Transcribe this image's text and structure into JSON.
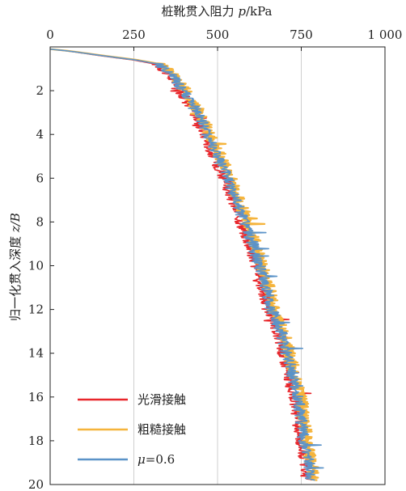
{
  "chart_data": {
    "type": "line",
    "xlabel_text": "桩靴贯入阻力 ",
    "xlabel_var": "p",
    "xlabel_unit": "/kPa",
    "ylabel_text": "归一化贯入深度 ",
    "ylabel_var": "z/B",
    "xlim": [
      0,
      1000
    ],
    "ylim": [
      0,
      20
    ],
    "x_axis_position": "top",
    "y_inverted": true,
    "grid": "vertical",
    "x_ticks": [
      0,
      250,
      500,
      750,
      1000
    ],
    "x_tick_labels": [
      "0",
      "250",
      "500",
      "750",
      "1 000"
    ],
    "y_ticks": [
      2,
      4,
      6,
      8,
      10,
      12,
      14,
      16,
      18,
      20
    ],
    "y_tick_labels": [
      "2",
      "4",
      "6",
      "8",
      "10",
      "12",
      "14",
      "16",
      "18",
      "20"
    ],
    "legend_position": "bottom-left",
    "legend": [
      {
        "label": "光滑接触",
        "color": "#e8262b"
      },
      {
        "label": "粗糙接触",
        "color": "#f5b43c"
      },
      {
        "label_prefix": "μ",
        "label_suffix": "=0.6",
        "color": "#5b93c8"
      }
    ],
    "series": [
      {
        "name": "光滑接触",
        "color": "#e8262b",
        "x": [
          0,
          60,
          150,
          250,
          320,
          350,
          380,
          410,
          440,
          460,
          490,
          520,
          545,
          570,
          595,
          615,
          635,
          650,
          665,
          680,
          695,
          705,
          712,
          720,
          730,
          740,
          748,
          755,
          762,
          768
        ],
        "y": [
          0.1,
          0.2,
          0.4,
          0.6,
          0.8,
          1.2,
          1.8,
          2.5,
          3.2,
          4.0,
          5.0,
          6.0,
          7.0,
          8.0,
          9.0,
          10.0,
          11.0,
          12.0,
          12.5,
          13.0,
          14.0,
          14.5,
          15.0,
          15.5,
          16.0,
          17.0,
          18.0,
          18.5,
          19.0,
          19.8
        ]
      },
      {
        "name": "粗糙接触",
        "color": "#f5b43c",
        "x": [
          0,
          65,
          160,
          262,
          335,
          365,
          395,
          425,
          455,
          478,
          508,
          538,
          563,
          588,
          613,
          633,
          653,
          668,
          683,
          698,
          713,
          723,
          730,
          738,
          748,
          758,
          766,
          773,
          780,
          786
        ],
        "y": [
          0.1,
          0.2,
          0.4,
          0.6,
          0.8,
          1.2,
          1.8,
          2.5,
          3.2,
          4.0,
          5.0,
          6.0,
          7.0,
          8.0,
          9.0,
          10.0,
          11.0,
          12.0,
          12.5,
          13.0,
          14.0,
          14.5,
          15.0,
          15.5,
          16.0,
          17.0,
          18.0,
          18.5,
          19.0,
          19.8
        ]
      },
      {
        "label_prefix": "μ",
        "label_suffix": "=0.6",
        "color": "#5b93c8",
        "x": [
          0,
          62,
          155,
          256,
          328,
          358,
          388,
          418,
          448,
          470,
          500,
          530,
          555,
          580,
          605,
          625,
          645,
          660,
          675,
          690,
          705,
          715,
          722,
          730,
          740,
          750,
          758,
          765,
          772,
          778
        ],
        "y": [
          0.1,
          0.2,
          0.4,
          0.6,
          0.8,
          1.2,
          1.8,
          2.5,
          3.2,
          4.0,
          5.0,
          6.0,
          7.0,
          8.0,
          9.0,
          10.0,
          11.0,
          12.0,
          12.5,
          13.0,
          14.0,
          14.5,
          15.0,
          15.5,
          16.0,
          17.0,
          18.0,
          18.5,
          19.0,
          19.8
        ]
      }
    ]
  }
}
